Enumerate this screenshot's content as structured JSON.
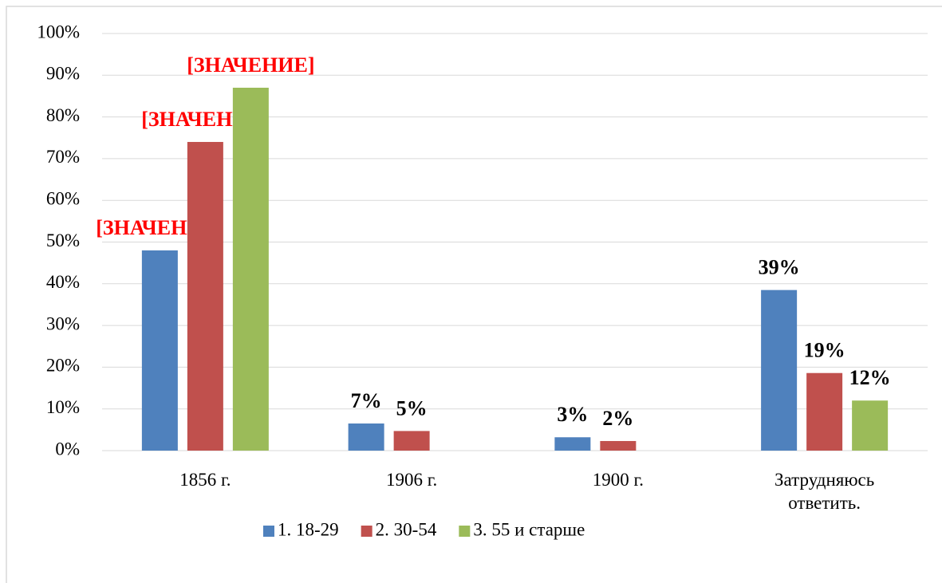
{
  "chart_data": {
    "type": "bar",
    "categories": [
      "1856 г.",
      "1906 г.",
      "1900 г.",
      "Затрудняюсь ответить."
    ],
    "series": [
      {
        "name": "1. 18-29",
        "color": "#4f81bd",
        "values": [
          48,
          6.5,
          3.2,
          38.5
        ],
        "value_labels": [
          "[ЗНАЧЕНИЕ]",
          "7%",
          "3%",
          "39%"
        ]
      },
      {
        "name": "2. 30-54",
        "color": "#c0504d",
        "values": [
          74,
          4.7,
          2.3,
          18.6
        ],
        "value_labels": [
          "[ЗНАЧЕНИЕ]",
          "5%",
          "2%",
          "19%"
        ]
      },
      {
        "name": "3. 55 и старше",
        "color": "#9bbb59",
        "values": [
          87,
          null,
          null,
          12
        ],
        "value_labels": [
          "[ЗНАЧЕНИЕ]",
          null,
          null,
          "12%"
        ]
      }
    ],
    "ylim": [
      0,
      100
    ],
    "yticks": [
      {
        "value": 0,
        "label": "0%"
      },
      {
        "value": 10,
        "label": "10%"
      },
      {
        "value": 20,
        "label": "20%"
      },
      {
        "value": 30,
        "label": "30%"
      },
      {
        "value": 40,
        "label": "40%"
      },
      {
        "value": 50,
        "label": "50%"
      },
      {
        "value": 60,
        "label": "60%"
      },
      {
        "value": 70,
        "label": "70%"
      },
      {
        "value": 80,
        "label": "80%"
      },
      {
        "value": 90,
        "label": "90%"
      },
      {
        "value": 100,
        "label": "100%"
      }
    ],
    "grid": true,
    "legend": "bottom"
  }
}
